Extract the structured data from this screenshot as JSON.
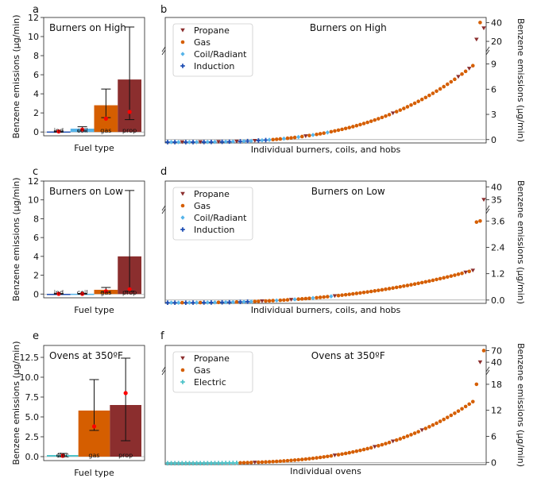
{
  "colors": {
    "induction": "#1f4eb4",
    "coil": "#56b4e9",
    "gas": "#d55e00",
    "propane": "#8b2e2e",
    "electric": "#4fc3c9",
    "median": "#ff0000"
  },
  "chart_data": [
    {
      "panel": "a",
      "type": "bar",
      "title": "Burners on High",
      "xlabel": "Fuel type",
      "ylabel": "Benzene emissions (µg/min)",
      "ylim": [
        -0.4,
        12
      ],
      "yticks": [
        0,
        2,
        4,
        6,
        8,
        10,
        12
      ],
      "categories": [
        "ind",
        "coil",
        "gas",
        "prop"
      ],
      "series": [
        {
          "values": [
            0.05,
            0.35,
            2.8,
            5.5
          ],
          "err_low": [
            0,
            0.1,
            1.5,
            1.3
          ],
          "err_high": [
            0.1,
            0.55,
            4.5,
            11
          ],
          "median": [
            0.05,
            0.25,
            1.4,
            2.1
          ]
        }
      ],
      "bar_colors": [
        "induction",
        "coil",
        "gas",
        "propane"
      ]
    },
    {
      "panel": "b",
      "type": "scatter",
      "title": "Burners on High",
      "xlabel": "Individual burners, coils, and hobs",
      "ylabel": "Benzene emissions (µg/min)",
      "y_broken_axis": true,
      "yticks_lower": [
        0,
        3,
        6,
        9
      ],
      "yticks_upper": [
        20,
        40
      ],
      "legend": [
        "Propane",
        "Gas",
        "Coil/Radiant",
        "Induction"
      ]
    },
    {
      "panel": "c",
      "type": "bar",
      "title": "Burners on Low",
      "xlabel": "Fuel type",
      "ylabel": "Benzene emissions (µg/min)",
      "ylim": [
        -0.4,
        12
      ],
      "yticks": [
        0,
        2,
        4,
        6,
        8,
        10,
        12
      ],
      "categories": [
        "ind",
        "coil",
        "gas",
        "prop"
      ],
      "series": [
        {
          "values": [
            0.02,
            0.03,
            0.45,
            4.0
          ],
          "err_low": [
            0,
            0,
            0.2,
            0.3
          ],
          "err_high": [
            0.05,
            0.06,
            0.7,
            11
          ],
          "median": [
            0.02,
            0.02,
            0.3,
            0.5
          ]
        }
      ],
      "bar_colors": [
        "induction",
        "coil",
        "gas",
        "propane"
      ]
    },
    {
      "panel": "d",
      "type": "scatter",
      "title": "Burners on Low",
      "xlabel": "Individual burners, coils, and hobs",
      "ylabel": "Benzene emissions (µg/min)",
      "y_broken_axis": true,
      "yticks_lower": [
        0.0,
        1.2,
        2.4,
        3.6
      ],
      "yticks_upper": [
        35,
        40
      ],
      "legend": [
        "Propane",
        "Gas",
        "Coil/Radiant",
        "Induction"
      ]
    },
    {
      "panel": "e",
      "type": "bar",
      "title": "Ovens at 350ºF",
      "xlabel": "Fuel type",
      "ylabel": "Benzene emissions (µg/min)",
      "ylim": [
        -0.5,
        14
      ],
      "yticks": [
        0.0,
        2.5,
        5.0,
        7.5,
        10.0,
        12.5
      ],
      "categories": [
        "elec",
        "gas",
        "prop"
      ],
      "series": [
        {
          "values": [
            0.2,
            5.8,
            6.5
          ],
          "err_low": [
            0,
            3.3,
            2.0
          ],
          "err_high": [
            0.4,
            9.7,
            12.4
          ],
          "median": [
            0.1,
            3.8,
            8.0
          ]
        }
      ],
      "bar_colors": [
        "electric",
        "gas",
        "propane"
      ]
    },
    {
      "panel": "f",
      "type": "scatter",
      "title": "Ovens at 350ºF",
      "xlabel": "Individual ovens",
      "ylabel": "Benzene emissions (µg/min)",
      "y_broken_axis": true,
      "yticks_lower": [
        0,
        6,
        12,
        18
      ],
      "yticks_upper": [
        40,
        70
      ],
      "legend": [
        "Propane",
        "Gas",
        "Electric"
      ]
    }
  ]
}
